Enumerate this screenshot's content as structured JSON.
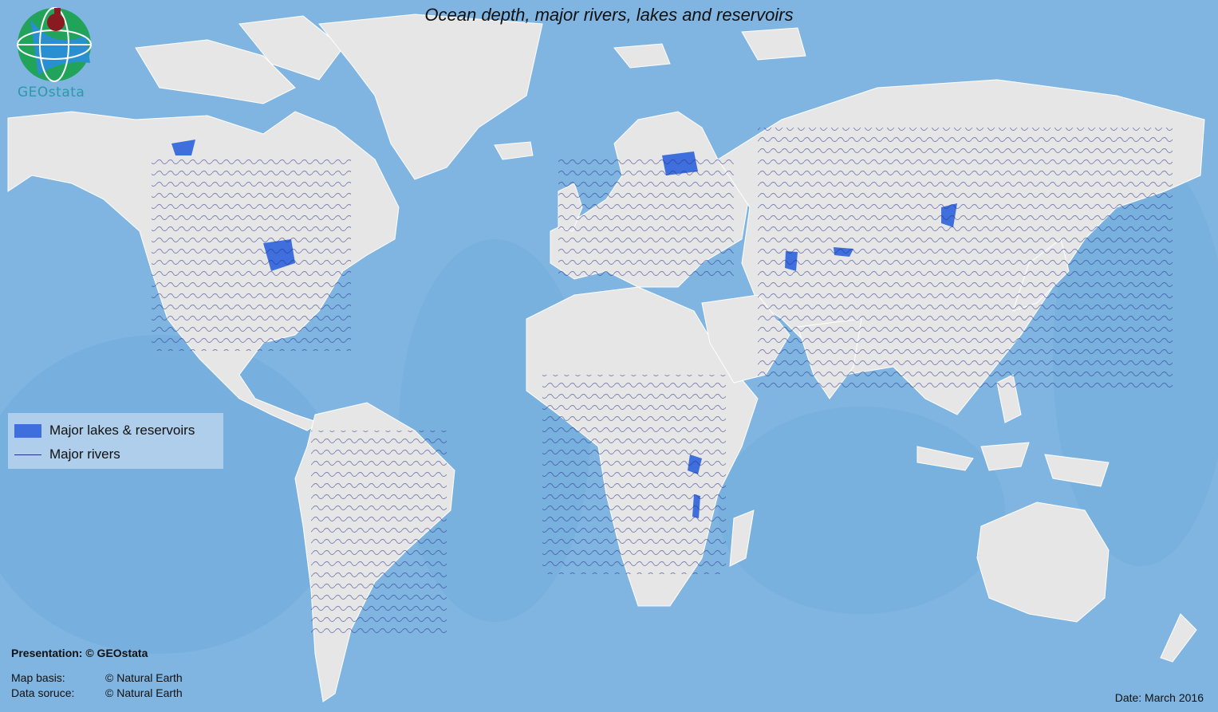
{
  "map": {
    "title": "Ocean depth, major rivers, lakes and reservoirs",
    "logo_text": "GEOstata",
    "colors": {
      "ocean": "#7fb5e0",
      "deep_ocean": "#6aa3d4",
      "land": "#e6e6e6",
      "border": "#ffffff",
      "lakes": "#3e6fdc",
      "rivers": "#2a2f8a"
    }
  },
  "legend": {
    "lakes_label": "Major lakes & reservoirs",
    "rivers_label": "Major rivers"
  },
  "credits": {
    "presentation": "Presentation:  © GEOstata",
    "map_basis_label": "Map basis:",
    "map_basis_value": "© Natural Earth",
    "data_source_label": "Data soruce:",
    "data_source_value": "© Natural Earth"
  },
  "date": "Date: March 2016"
}
